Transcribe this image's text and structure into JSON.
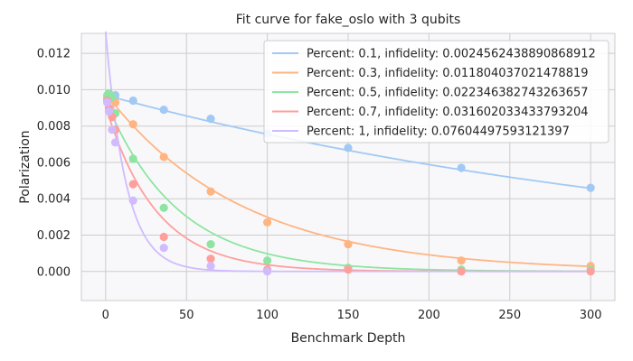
{
  "chart_data": {
    "type": "scatter",
    "title": "Fit curve for fake_oslo with 3 qubits",
    "xlabel": "Benchmark Depth",
    "ylabel": "Polarization",
    "xlim": [
      -15,
      315
    ],
    "ylim": [
      -0.0016,
      0.0131
    ],
    "x_ticks": [
      "0",
      "50",
      "100",
      "150",
      "200",
      "250",
      "300"
    ],
    "x_tick_values": [
      0,
      50,
      100,
      150,
      200,
      250,
      300
    ],
    "y_ticks": [
      "0.000",
      "0.002",
      "0.004",
      "0.006",
      "0.008",
      "0.010",
      "0.012"
    ],
    "y_tick_values": [
      0,
      0.002,
      0.004,
      0.006,
      0.008,
      0.01,
      0.012
    ],
    "grid": true,
    "legend_position": "top-right",
    "series": [
      {
        "name": "Percent: 0.1, infidelity: 0.0024562438890868912",
        "color": "#a1c9f4",
        "points": [
          [
            1,
            0.0095
          ],
          [
            2,
            0.0098
          ],
          [
            4,
            0.0096
          ],
          [
            6,
            0.0097
          ],
          [
            17,
            0.0094
          ],
          [
            36,
            0.0089
          ],
          [
            65,
            0.0084
          ],
          [
            100,
            0.0076
          ],
          [
            150,
            0.0068
          ],
          [
            220,
            0.0057
          ],
          [
            300,
            0.0046
          ]
        ],
        "fit": {
          "a": 0.0097,
          "decay": 0.9975,
          "b": 0
        }
      },
      {
        "name": "Percent: 0.3, infidelity: 0.011804037021478819",
        "color": "#ffb482",
        "points": [
          [
            1,
            0.0096
          ],
          [
            2,
            0.0097
          ],
          [
            4,
            0.0095
          ],
          [
            6,
            0.0093
          ],
          [
            17,
            0.0081
          ],
          [
            36,
            0.0063
          ],
          [
            65,
            0.0044
          ],
          [
            100,
            0.0027
          ],
          [
            150,
            0.0015
          ],
          [
            220,
            0.0006
          ],
          [
            300,
            0.0003
          ]
        ],
        "fit": {
          "a": 0.0098,
          "decay": 0.9882,
          "b": 0
        }
      },
      {
        "name": "Percent: 0.5, infidelity: 0.022346382743263657",
        "color": "#8de5a1",
        "points": [
          [
            1,
            0.0097
          ],
          [
            2,
            0.0098
          ],
          [
            4,
            0.0096
          ],
          [
            6,
            0.0087
          ],
          [
            17,
            0.0062
          ],
          [
            36,
            0.0035
          ],
          [
            65,
            0.0015
          ],
          [
            100,
            0.0006
          ],
          [
            150,
            0.0002
          ],
          [
            220,
            0.0001
          ],
          [
            300,
            0.0001
          ]
        ],
        "fit": {
          "a": 0.0094,
          "decay": 0.9776,
          "b": 0
        }
      },
      {
        "name": "Percent: 0.7, infidelity: 0.031602033433793204",
        "color": "#ff9f9b",
        "points": [
          [
            1,
            0.0094
          ],
          [
            2,
            0.009
          ],
          [
            4,
            0.0085
          ],
          [
            6,
            0.0078
          ],
          [
            17,
            0.0048
          ],
          [
            36,
            0.0019
          ],
          [
            65,
            0.0007
          ],
          [
            100,
            0.0001
          ],
          [
            150,
            0.0001
          ],
          [
            220,
            0.0
          ],
          [
            300,
            0.0
          ]
        ],
        "fit": {
          "a": 0.0091,
          "decay": 0.9684,
          "b": 0
        }
      },
      {
        "name": "Percent: 1, infidelity: 0.07604497593121397",
        "color": "#d0bbff",
        "points": [
          [
            1,
            0.0093
          ],
          [
            2,
            0.0088
          ],
          [
            4,
            0.0078
          ],
          [
            6,
            0.0071
          ],
          [
            17,
            0.0039
          ],
          [
            36,
            0.0013
          ],
          [
            65,
            0.0003
          ],
          [
            100,
            0.0
          ]
        ],
        "fit": {
          "a": 0.0132,
          "decay": 0.924,
          "b": 0
        }
      }
    ]
  }
}
